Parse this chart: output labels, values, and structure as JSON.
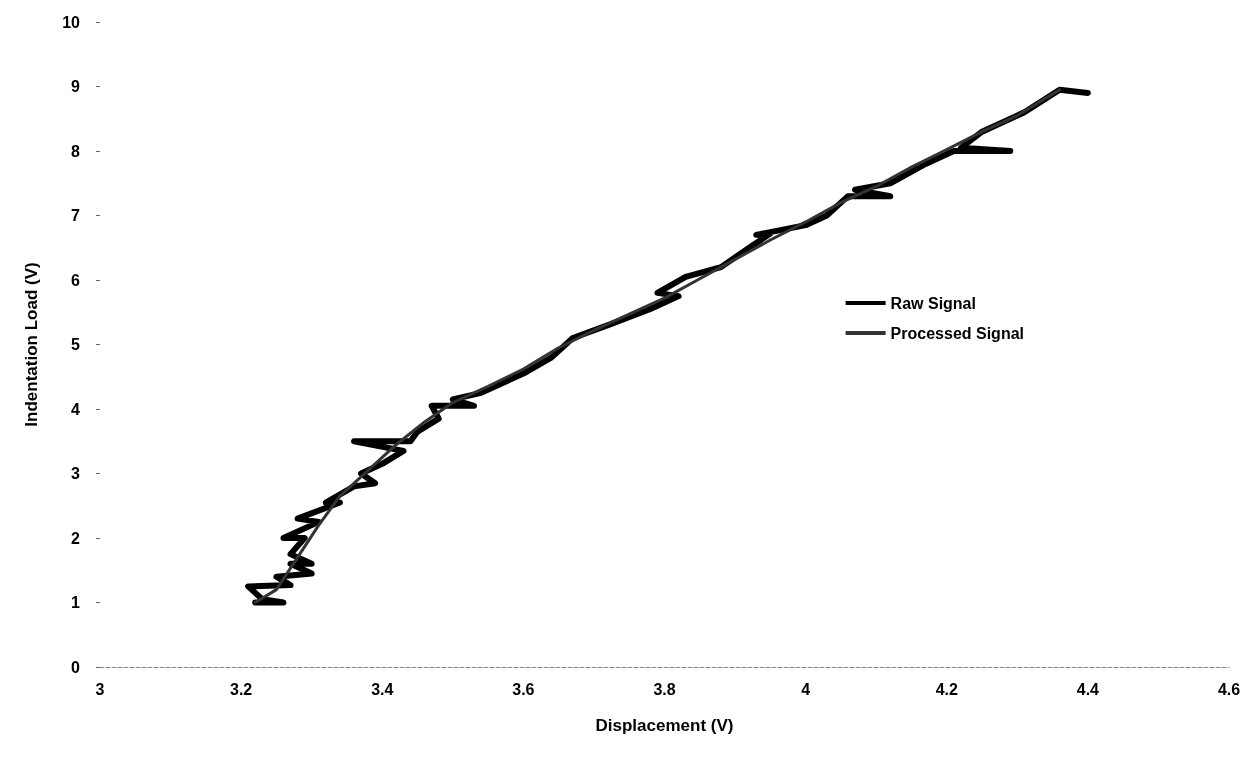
{
  "chart_data": {
    "type": "line",
    "xlabel": "Displacement (V)",
    "ylabel": "Indentation Load (V)",
    "xlim": [
      3,
      4.6
    ],
    "xticks": [
      3,
      3.2,
      3.4,
      3.6,
      3.8,
      4,
      4.2,
      4.4,
      4.6
    ],
    "ylim": [
      0,
      10
    ],
    "yticks": [
      0,
      1,
      2,
      3,
      4,
      5,
      6,
      7,
      8,
      9,
      10
    ],
    "grid": false,
    "legend": "right",
    "marker": "none",
    "line_style": "solid",
    "series": [
      {
        "name": "Raw Signal",
        "color": "#000000",
        "x": [
          3.22,
          3.26,
          3.23,
          3.21,
          3.27,
          3.25,
          3.3,
          3.27,
          3.3,
          3.27,
          3.29,
          3.26,
          3.31,
          3.28,
          3.34,
          3.32,
          3.36,
          3.39,
          3.37,
          3.4,
          3.43,
          3.36,
          3.44,
          3.45,
          3.48,
          3.47,
          3.53,
          3.5,
          3.54,
          3.6,
          3.64,
          3.67,
          3.72,
          3.78,
          3.82,
          3.79,
          3.83,
          3.88,
          3.92,
          3.95,
          3.93,
          4.0,
          4.03,
          4.06,
          4.12,
          4.07,
          4.12,
          4.17,
          4.21,
          4.29,
          4.22,
          4.25,
          4.31,
          4.36,
          4.4
        ],
        "values": [
          1.0,
          1.0,
          1.05,
          1.25,
          1.27,
          1.4,
          1.45,
          1.6,
          1.6,
          1.75,
          2.0,
          2.0,
          2.25,
          2.3,
          2.55,
          2.55,
          2.8,
          2.85,
          3.0,
          3.15,
          3.35,
          3.5,
          3.5,
          3.65,
          3.85,
          4.05,
          4.05,
          4.15,
          4.25,
          4.55,
          4.8,
          5.1,
          5.3,
          5.55,
          5.75,
          5.8,
          6.05,
          6.2,
          6.5,
          6.72,
          6.7,
          6.85,
          7.0,
          7.3,
          7.3,
          7.4,
          7.5,
          7.8,
          8.0,
          8.0,
          8.05,
          8.3,
          8.6,
          8.95,
          8.9
        ]
      },
      {
        "name": "Processed Signal",
        "color": "#333333",
        "x": [
          3.22,
          3.25,
          3.28,
          3.31,
          3.34,
          3.38,
          3.42,
          3.46,
          3.5,
          3.55,
          3.6,
          3.65,
          3.7,
          3.75,
          3.8,
          3.85,
          3.9,
          3.95,
          4.0,
          4.05,
          4.1,
          4.15,
          4.2,
          4.25,
          4.3,
          4.36
        ],
        "values": [
          1.0,
          1.2,
          1.7,
          2.2,
          2.65,
          3.05,
          3.45,
          3.8,
          4.1,
          4.35,
          4.62,
          4.95,
          5.22,
          5.47,
          5.72,
          6.02,
          6.32,
          6.62,
          6.9,
          7.2,
          7.45,
          7.75,
          8.02,
          8.3,
          8.55,
          8.95
        ]
      }
    ]
  }
}
